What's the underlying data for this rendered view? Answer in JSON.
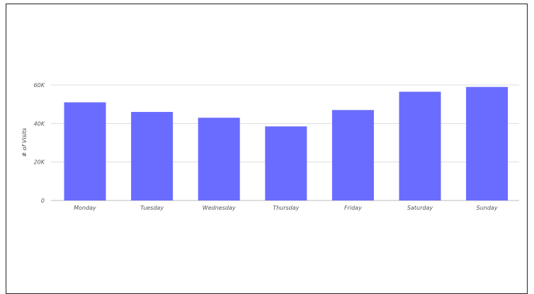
{
  "chart_data": {
    "type": "bar",
    "categories": [
      "Monday",
      "Tuesday",
      "Wednesday",
      "Thursday",
      "Friday",
      "Saturday",
      "Sunday"
    ],
    "values": [
      51000,
      46000,
      43000,
      38500,
      47000,
      56500,
      59000
    ],
    "ylabel": "# of Visits",
    "ylim": [
      0,
      60000
    ],
    "yticks": [
      0,
      20000,
      40000,
      60000
    ],
    "ytick_labels": [
      "0",
      "20K",
      "40K",
      "60K"
    ],
    "grid": true,
    "legend": "none",
    "bar_color": "#6a6cff",
    "grid_color": "#dddddd"
  }
}
